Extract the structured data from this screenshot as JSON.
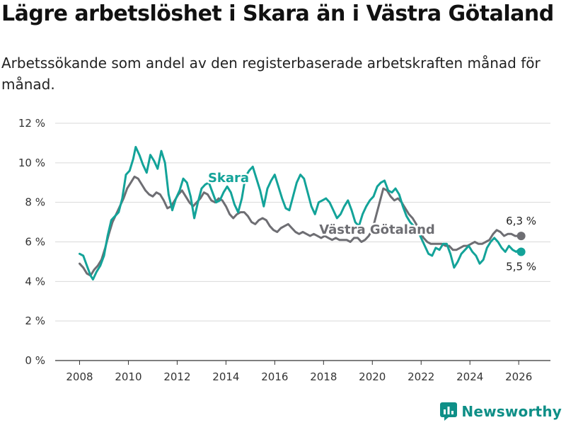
{
  "header": {
    "title": "Lägre arbetslöshet i Skara än i Västra Götaland",
    "subtitle": "Arbetssökande som andel av den registerbaserade arbetskraften månad för månad."
  },
  "brand": {
    "name": "Newsworthy",
    "icon": "newsworthy-logo-icon"
  },
  "colors": {
    "skara": "#13a399",
    "region": "#6e6e73",
    "grid": "#d9d9d9",
    "brand": "#0e8f87"
  },
  "chart_data": {
    "type": "line",
    "title": "Lägre arbetslöshet i Skara än i Västra Götaland",
    "xlabel": "",
    "ylabel": "",
    "xlim": [
      2007.0,
      2027.3
    ],
    "ylim": [
      0,
      12
    ],
    "grid": true,
    "legend": "inline labels",
    "y_ticks": [
      {
        "value": 0,
        "label": "0 %"
      },
      {
        "value": 2,
        "label": "2 %"
      },
      {
        "value": 4,
        "label": "4 %"
      },
      {
        "value": 6,
        "label": "6 %"
      },
      {
        "value": 8,
        "label": "8 %"
      },
      {
        "value": 10,
        "label": "10 %"
      },
      {
        "value": 12,
        "label": "12 %"
      }
    ],
    "x_ticks": [
      {
        "value": 2008,
        "label": "2008"
      },
      {
        "value": 2010,
        "label": "2010"
      },
      {
        "value": 2012,
        "label": "2012"
      },
      {
        "value": 2014,
        "label": "2014"
      },
      {
        "value": 2016,
        "label": "2016"
      },
      {
        "value": 2018,
        "label": "2018"
      },
      {
        "value": 2020,
        "label": "2020"
      },
      {
        "value": 2022,
        "label": "2022"
      },
      {
        "value": 2024,
        "label": "2024"
      },
      {
        "value": 2026,
        "label": "2026"
      }
    ],
    "series": [
      {
        "name": "Västra Götaland",
        "color": "#6e6e73",
        "label": "Västra Götaland",
        "end_label": "6,3 %",
        "points": [
          [
            2008.0,
            4.9
          ],
          [
            2008.15,
            4.7
          ],
          [
            2008.3,
            4.4
          ],
          [
            2008.45,
            4.3
          ],
          [
            2008.6,
            4.6
          ],
          [
            2008.75,
            4.8
          ],
          [
            2008.9,
            5.1
          ],
          [
            2009.05,
            5.7
          ],
          [
            2009.2,
            6.4
          ],
          [
            2009.35,
            7.0
          ],
          [
            2009.5,
            7.4
          ],
          [
            2009.65,
            7.8
          ],
          [
            2009.8,
            8.2
          ],
          [
            2009.95,
            8.7
          ],
          [
            2010.1,
            9.0
          ],
          [
            2010.25,
            9.3
          ],
          [
            2010.4,
            9.2
          ],
          [
            2010.55,
            8.9
          ],
          [
            2010.7,
            8.6
          ],
          [
            2010.85,
            8.4
          ],
          [
            2011.0,
            8.3
          ],
          [
            2011.15,
            8.5
          ],
          [
            2011.3,
            8.4
          ],
          [
            2011.45,
            8.1
          ],
          [
            2011.6,
            7.7
          ],
          [
            2011.75,
            7.8
          ],
          [
            2011.9,
            8.1
          ],
          [
            2012.05,
            8.4
          ],
          [
            2012.2,
            8.6
          ],
          [
            2012.35,
            8.3
          ],
          [
            2012.5,
            8.0
          ],
          [
            2012.65,
            7.8
          ],
          [
            2012.8,
            8.0
          ],
          [
            2012.95,
            8.2
          ],
          [
            2013.1,
            8.5
          ],
          [
            2013.25,
            8.4
          ],
          [
            2013.4,
            8.1
          ],
          [
            2013.55,
            8.0
          ],
          [
            2013.7,
            8.2
          ],
          [
            2013.85,
            8.1
          ],
          [
            2014.0,
            7.8
          ],
          [
            2014.15,
            7.4
          ],
          [
            2014.3,
            7.2
          ],
          [
            2014.45,
            7.4
          ],
          [
            2014.6,
            7.5
          ],
          [
            2014.75,
            7.5
          ],
          [
            2014.9,
            7.3
          ],
          [
            2015.05,
            7.0
          ],
          [
            2015.2,
            6.9
          ],
          [
            2015.35,
            7.1
          ],
          [
            2015.5,
            7.2
          ],
          [
            2015.65,
            7.1
          ],
          [
            2015.8,
            6.8
          ],
          [
            2015.95,
            6.6
          ],
          [
            2016.1,
            6.5
          ],
          [
            2016.25,
            6.7
          ],
          [
            2016.4,
            6.8
          ],
          [
            2016.55,
            6.9
          ],
          [
            2016.7,
            6.7
          ],
          [
            2016.85,
            6.5
          ],
          [
            2017.0,
            6.4
          ],
          [
            2017.15,
            6.5
          ],
          [
            2017.3,
            6.4
          ],
          [
            2017.45,
            6.3
          ],
          [
            2017.6,
            6.4
          ],
          [
            2017.75,
            6.3
          ],
          [
            2017.9,
            6.2
          ],
          [
            2018.05,
            6.3
          ],
          [
            2018.2,
            6.2
          ],
          [
            2018.35,
            6.1
          ],
          [
            2018.5,
            6.2
          ],
          [
            2018.65,
            6.1
          ],
          [
            2018.8,
            6.1
          ],
          [
            2018.95,
            6.1
          ],
          [
            2019.1,
            6.0
          ],
          [
            2019.25,
            6.2
          ],
          [
            2019.4,
            6.2
          ],
          [
            2019.55,
            6.0
          ],
          [
            2019.7,
            6.1
          ],
          [
            2019.85,
            6.3
          ],
          [
            2020.0,
            6.6
          ],
          [
            2020.15,
            7.3
          ],
          [
            2020.3,
            8.0
          ],
          [
            2020.45,
            8.7
          ],
          [
            2020.6,
            8.6
          ],
          [
            2020.75,
            8.3
          ],
          [
            2020.9,
            8.1
          ],
          [
            2021.05,
            8.2
          ],
          [
            2021.2,
            8.0
          ],
          [
            2021.35,
            7.7
          ],
          [
            2021.5,
            7.4
          ],
          [
            2021.65,
            7.2
          ],
          [
            2021.8,
            6.9
          ],
          [
            2021.95,
            6.5
          ],
          [
            2022.1,
            6.2
          ],
          [
            2022.25,
            6.0
          ],
          [
            2022.4,
            5.9
          ],
          [
            2022.55,
            5.9
          ],
          [
            2022.7,
            5.9
          ],
          [
            2022.85,
            5.9
          ],
          [
            2023.0,
            5.8
          ],
          [
            2023.15,
            5.8
          ],
          [
            2023.3,
            5.6
          ],
          [
            2023.45,
            5.6
          ],
          [
            2023.6,
            5.7
          ],
          [
            2023.75,
            5.8
          ],
          [
            2023.9,
            5.8
          ],
          [
            2024.05,
            5.9
          ],
          [
            2024.2,
            6.0
          ],
          [
            2024.35,
            5.9
          ],
          [
            2024.5,
            5.9
          ],
          [
            2024.65,
            6.0
          ],
          [
            2024.8,
            6.1
          ],
          [
            2024.95,
            6.4
          ],
          [
            2025.1,
            6.6
          ],
          [
            2025.25,
            6.5
          ],
          [
            2025.4,
            6.3
          ],
          [
            2025.55,
            6.4
          ],
          [
            2025.7,
            6.4
          ],
          [
            2025.85,
            6.3
          ],
          [
            2026.0,
            6.3
          ],
          [
            2026.1,
            6.3
          ]
        ]
      },
      {
        "name": "Skara",
        "color": "#13a399",
        "label": "Skara",
        "end_label": "5,5 %",
        "points": [
          [
            2008.0,
            5.4
          ],
          [
            2008.15,
            5.3
          ],
          [
            2008.3,
            4.8
          ],
          [
            2008.45,
            4.3
          ],
          [
            2008.55,
            4.1
          ],
          [
            2008.7,
            4.5
          ],
          [
            2008.85,
            4.8
          ],
          [
            2009.0,
            5.3
          ],
          [
            2009.15,
            6.3
          ],
          [
            2009.3,
            7.1
          ],
          [
            2009.45,
            7.3
          ],
          [
            2009.6,
            7.5
          ],
          [
            2009.75,
            8.2
          ],
          [
            2009.9,
            9.4
          ],
          [
            2010.05,
            9.6
          ],
          [
            2010.2,
            10.2
          ],
          [
            2010.3,
            10.8
          ],
          [
            2010.45,
            10.4
          ],
          [
            2010.6,
            9.9
          ],
          [
            2010.75,
            9.5
          ],
          [
            2010.9,
            10.4
          ],
          [
            2011.05,
            10.1
          ],
          [
            2011.2,
            9.7
          ],
          [
            2011.35,
            10.6
          ],
          [
            2011.5,
            10.0
          ],
          [
            2011.65,
            8.4
          ],
          [
            2011.8,
            7.6
          ],
          [
            2011.95,
            8.2
          ],
          [
            2012.1,
            8.6
          ],
          [
            2012.25,
            9.2
          ],
          [
            2012.4,
            9.0
          ],
          [
            2012.55,
            8.3
          ],
          [
            2012.7,
            7.2
          ],
          [
            2012.85,
            8.0
          ],
          [
            2013.0,
            8.7
          ],
          [
            2013.15,
            8.9
          ],
          [
            2013.3,
            9.0
          ],
          [
            2013.45,
            8.5
          ],
          [
            2013.6,
            8.0
          ],
          [
            2013.75,
            8.1
          ],
          [
            2013.9,
            8.5
          ],
          [
            2014.05,
            8.8
          ],
          [
            2014.2,
            8.5
          ],
          [
            2014.35,
            7.9
          ],
          [
            2014.5,
            7.5
          ],
          [
            2014.65,
            8.2
          ],
          [
            2014.8,
            9.3
          ],
          [
            2014.95,
            9.6
          ],
          [
            2015.1,
            9.8
          ],
          [
            2015.25,
            9.2
          ],
          [
            2015.4,
            8.6
          ],
          [
            2015.55,
            7.8
          ],
          [
            2015.7,
            8.7
          ],
          [
            2015.85,
            9.1
          ],
          [
            2016.0,
            9.4
          ],
          [
            2016.15,
            8.8
          ],
          [
            2016.3,
            8.2
          ],
          [
            2016.45,
            7.7
          ],
          [
            2016.6,
            7.6
          ],
          [
            2016.75,
            8.3
          ],
          [
            2016.9,
            9.0
          ],
          [
            2017.05,
            9.4
          ],
          [
            2017.2,
            9.2
          ],
          [
            2017.35,
            8.5
          ],
          [
            2017.5,
            7.8
          ],
          [
            2017.65,
            7.4
          ],
          [
            2017.8,
            8.0
          ],
          [
            2017.95,
            8.1
          ],
          [
            2018.1,
            8.2
          ],
          [
            2018.25,
            8.0
          ],
          [
            2018.4,
            7.6
          ],
          [
            2018.55,
            7.2
          ],
          [
            2018.7,
            7.4
          ],
          [
            2018.85,
            7.8
          ],
          [
            2019.0,
            8.1
          ],
          [
            2019.15,
            7.6
          ],
          [
            2019.3,
            7.0
          ],
          [
            2019.45,
            6.8
          ],
          [
            2019.6,
            7.4
          ],
          [
            2019.75,
            7.8
          ],
          [
            2019.9,
            8.1
          ],
          [
            2020.05,
            8.3
          ],
          [
            2020.2,
            8.8
          ],
          [
            2020.35,
            9.0
          ],
          [
            2020.5,
            9.1
          ],
          [
            2020.65,
            8.6
          ],
          [
            2020.8,
            8.5
          ],
          [
            2020.95,
            8.7
          ],
          [
            2021.1,
            8.4
          ],
          [
            2021.25,
            7.8
          ],
          [
            2021.4,
            7.3
          ],
          [
            2021.55,
            7.0
          ],
          [
            2021.7,
            6.8
          ],
          [
            2021.85,
            6.6
          ],
          [
            2022.0,
            6.2
          ],
          [
            2022.15,
            5.8
          ],
          [
            2022.3,
            5.4
          ],
          [
            2022.45,
            5.3
          ],
          [
            2022.6,
            5.7
          ],
          [
            2022.75,
            5.6
          ],
          [
            2022.9,
            5.9
          ],
          [
            2023.05,
            5.9
          ],
          [
            2023.2,
            5.4
          ],
          [
            2023.35,
            4.7
          ],
          [
            2023.5,
            5.0
          ],
          [
            2023.65,
            5.4
          ],
          [
            2023.8,
            5.6
          ],
          [
            2023.95,
            5.8
          ],
          [
            2024.1,
            5.5
          ],
          [
            2024.25,
            5.3
          ],
          [
            2024.4,
            4.9
          ],
          [
            2024.55,
            5.1
          ],
          [
            2024.7,
            5.7
          ],
          [
            2024.85,
            6.0
          ],
          [
            2025.0,
            6.2
          ],
          [
            2025.15,
            6.0
          ],
          [
            2025.3,
            5.7
          ],
          [
            2025.45,
            5.5
          ],
          [
            2025.6,
            5.8
          ],
          [
            2025.75,
            5.6
          ],
          [
            2025.9,
            5.5
          ],
          [
            2026.0,
            5.6
          ],
          [
            2026.1,
            5.5
          ]
        ]
      }
    ]
  }
}
